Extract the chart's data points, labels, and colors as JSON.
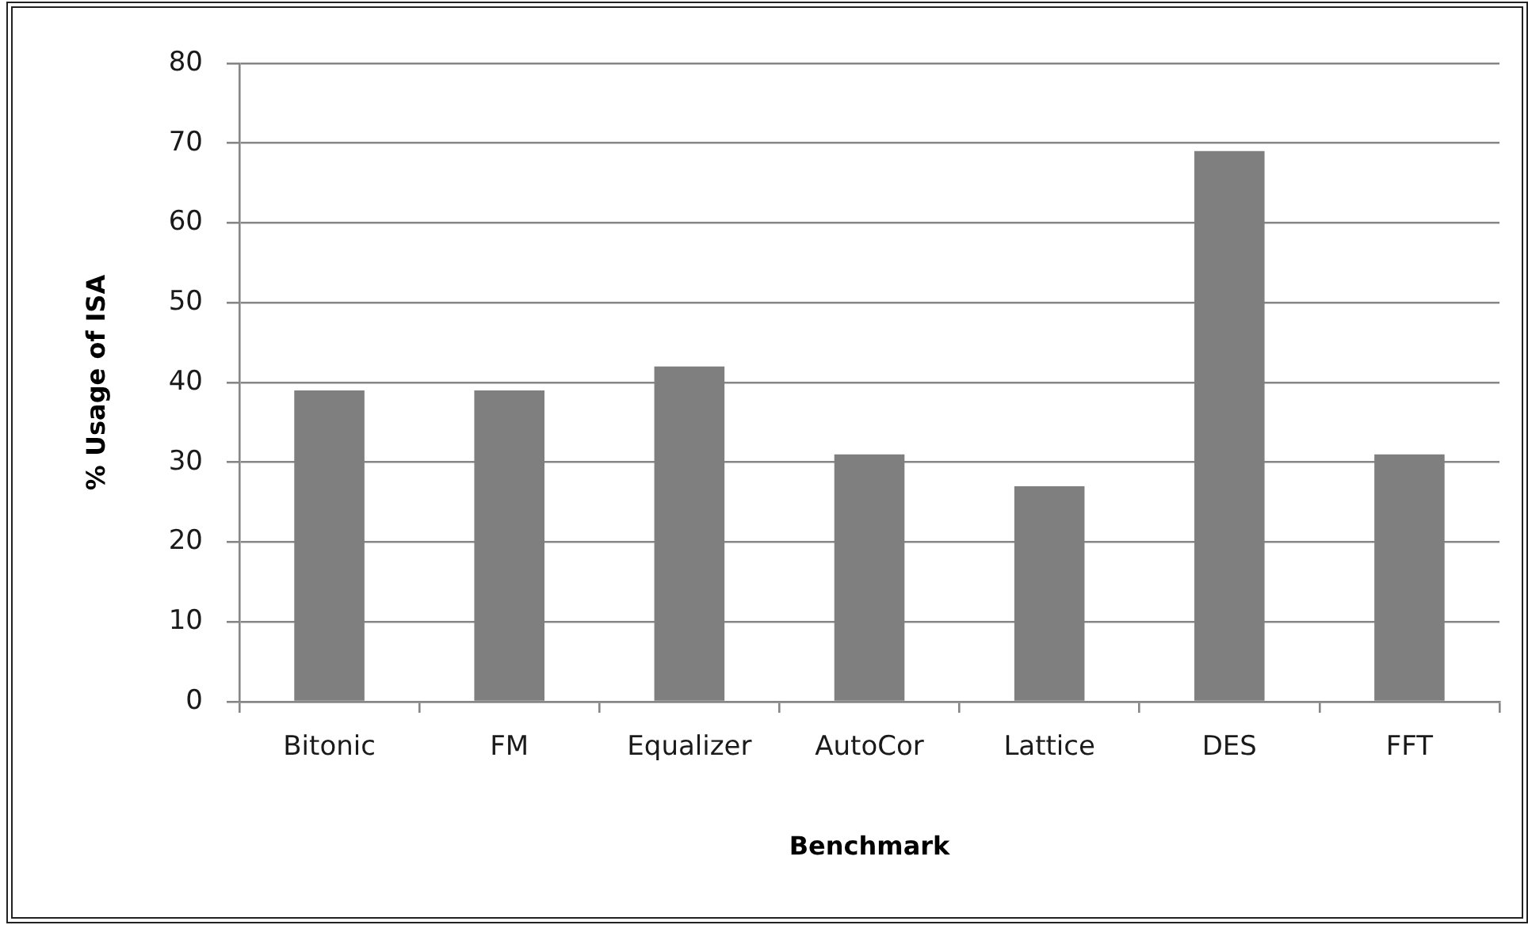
{
  "chart_data": {
    "type": "bar",
    "xlabel": "Benchmark",
    "ylabel": "% Usage of ISA",
    "categories": [
      "Bitonic",
      "FM",
      "Equalizer",
      "AutoCor",
      "Lattice",
      "DES",
      "FFT"
    ],
    "values": [
      39,
      39,
      42,
      31,
      27,
      69,
      31
    ],
    "color": "#7f7f7f",
    "ylim": [
      0,
      80
    ],
    "yticks": [
      0,
      10,
      20,
      30,
      40,
      50,
      60,
      70,
      80
    ],
    "grid": "y"
  }
}
